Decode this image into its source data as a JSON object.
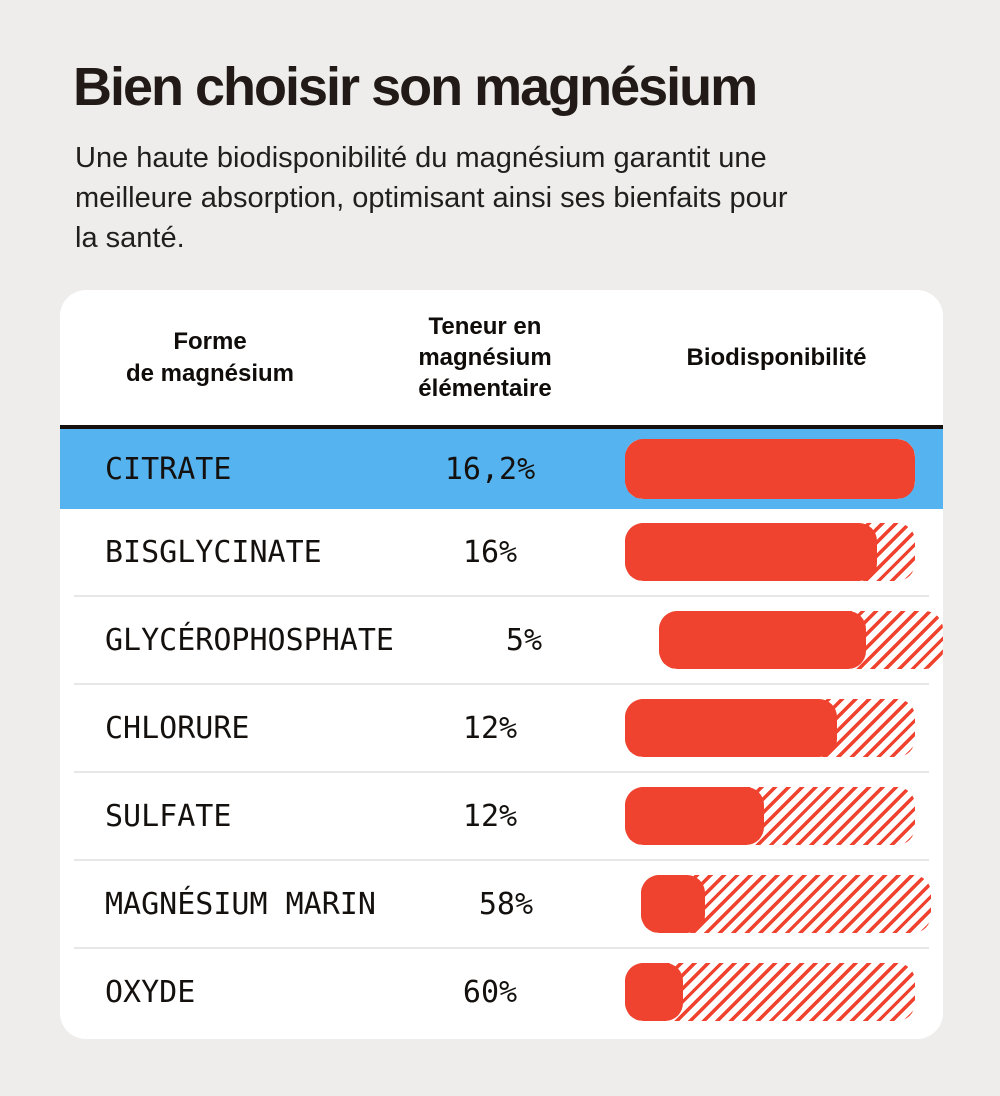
{
  "colors": {
    "background": "#eeedec",
    "card": "#ffffff",
    "accent_red": "#ef432f",
    "highlight_blue": "#55b4f0",
    "text_dark": "#211a17",
    "divider": "#e9e7e5"
  },
  "header": {
    "title": "Bien choisir son magnésium",
    "subtitle": "Une haute biodisponibilité du magnésium garantit une meilleure absorption, optimisant ainsi ses bienfaits pour la santé."
  },
  "table": {
    "columns": [
      {
        "label": "Forme\nde magnésium"
      },
      {
        "label": "Teneur en\nmagnésium\nélémentaire"
      },
      {
        "label": "Biodisponibilité"
      }
    ],
    "rows": [
      {
        "label": "CITRATE",
        "teneur": "16,2%",
        "bioavailability_fill_pct": 100,
        "highlighted": true
      },
      {
        "label": "BISGLYCINATE",
        "teneur": "16%",
        "bioavailability_fill_pct": 87,
        "highlighted": false
      },
      {
        "label": "GLYCÉROPHOSPHATE",
        "teneur": "5%",
        "bioavailability_fill_pct": 73,
        "highlighted": false
      },
      {
        "label": "CHLORURE",
        "teneur": "12%",
        "bioavailability_fill_pct": 73,
        "highlighted": false
      },
      {
        "label": "SULFATE",
        "teneur": "12%",
        "bioavailability_fill_pct": 48,
        "highlighted": false
      },
      {
        "label": "MAGNÉSIUM MARIN",
        "teneur": "58%",
        "bioavailability_fill_pct": 22,
        "highlighted": false
      },
      {
        "label": "OXYDE",
        "teneur": "60%",
        "bioavailability_fill_pct": 20,
        "highlighted": false
      }
    ]
  },
  "chart_data": {
    "type": "bar",
    "title": "Bien choisir son magnésium",
    "subtitle": "Une haute biodisponibilité du magnésium garantit une meilleure absorption, optimisant ainsi ses bienfaits pour la santé.",
    "categories": [
      "CITRATE",
      "BISGLYCINATE",
      "GLYCÉROPHOSPHATE",
      "CHLORURE",
      "SULFATE",
      "MAGNÉSIUM MARIN",
      "OXYDE"
    ],
    "series": [
      {
        "name": "Teneur en magnésium élémentaire",
        "values": [
          "16,2%",
          "16%",
          "5%",
          "12%",
          "12%",
          "58%",
          "60%"
        ]
      },
      {
        "name": "Biodisponibilité (remplissage relatif de la barre, %)",
        "values": [
          100,
          87,
          73,
          73,
          48,
          22,
          20
        ]
      }
    ],
    "highlighted_category": "CITRATE",
    "legend_position": "none",
    "layout_hint": "barres horizontales pleines en rouge, reste de la jauge hachuré; aucune valeur numérique affichée pour la biodisponibilité"
  }
}
